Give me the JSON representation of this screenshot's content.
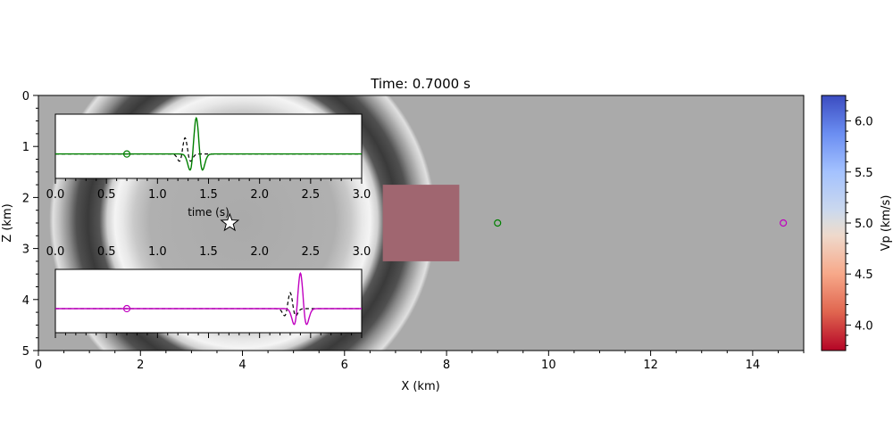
{
  "chart_data": {
    "type": "heatmap",
    "title": "Time: 0.7000 s",
    "xlabel": "X (km)",
    "ylabel": "Z (km)",
    "xlim": [
      0,
      15
    ],
    "ylim": [
      5,
      0
    ],
    "x_major_ticks": [
      0,
      2,
      4,
      6,
      8,
      10,
      12,
      14
    ],
    "y_major_ticks": [
      0,
      1,
      2,
      3,
      4,
      5
    ],
    "background_vp": 5.0,
    "anomaly": {
      "x": [
        6.75,
        8.25
      ],
      "z": [
        1.75,
        3.25
      ],
      "color": "#a06670"
    },
    "wavefront": {
      "center_x": 4.0,
      "center_z": 2.45,
      "ring_radius_km": 2.5
    },
    "source": {
      "x": 3.75,
      "z": 2.5,
      "marker": "star"
    },
    "receivers": [
      {
        "x": 9.0,
        "z": 2.5,
        "color": "#008000"
      },
      {
        "x": 14.6,
        "z": 2.5,
        "color": "#c000c0"
      }
    ],
    "colorbar": {
      "label": "Vp (km/s)",
      "range": [
        3.75,
        6.25
      ],
      "ticks": [
        4.0,
        4.5,
        5.0,
        5.5,
        6.0
      ],
      "colormap": "coolwarm_r"
    },
    "insets": [
      {
        "xlim": [
          0,
          3
        ],
        "xticks": [
          0.0,
          0.5,
          1.0,
          1.5,
          2.0,
          2.5,
          3.0
        ],
        "xlabel": "time (s)",
        "trace_color": "#008000",
        "marker_time": 0.7,
        "observed": {
          "peak_time": 1.38,
          "amplitude": 1.0,
          "sigma": 0.05
        },
        "reference": {
          "peak_time": 1.27,
          "amplitude": 0.45,
          "sigma": 0.045
        }
      },
      {
        "xlim": [
          0,
          3
        ],
        "xticks": [
          0.0,
          0.5,
          1.0,
          1.5,
          2.0,
          2.5,
          3.0
        ],
        "xlabel": "",
        "trace_color": "#c000c0",
        "marker_time": 0.7,
        "observed": {
          "peak_time": 2.4,
          "amplitude": 1.0,
          "sigma": 0.05
        },
        "reference": {
          "peak_time": 2.3,
          "amplitude": 0.45,
          "sigma": 0.045
        }
      }
    ]
  }
}
